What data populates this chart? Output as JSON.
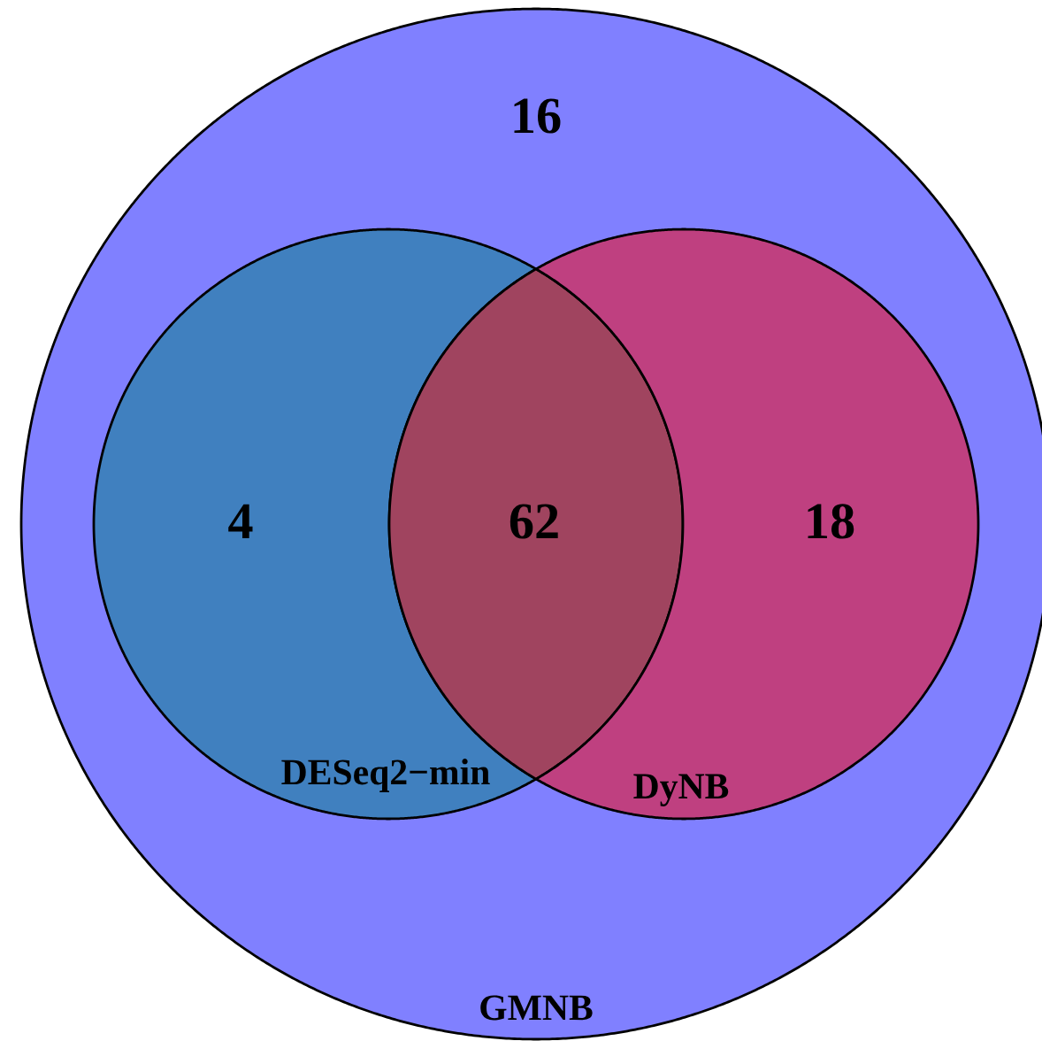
{
  "chart_data": {
    "type": "other",
    "categories": [
      "GMNB",
      "DESeq2−min",
      null,
      "DyNB"
    ],
    "values": [
      16,
      4,
      62,
      18
    ],
    "colors": [
      "#8080ff",
      "#4080bf",
      "#a0445f",
      "#bf4080"
    ],
    "data_labels": true
  }
}
